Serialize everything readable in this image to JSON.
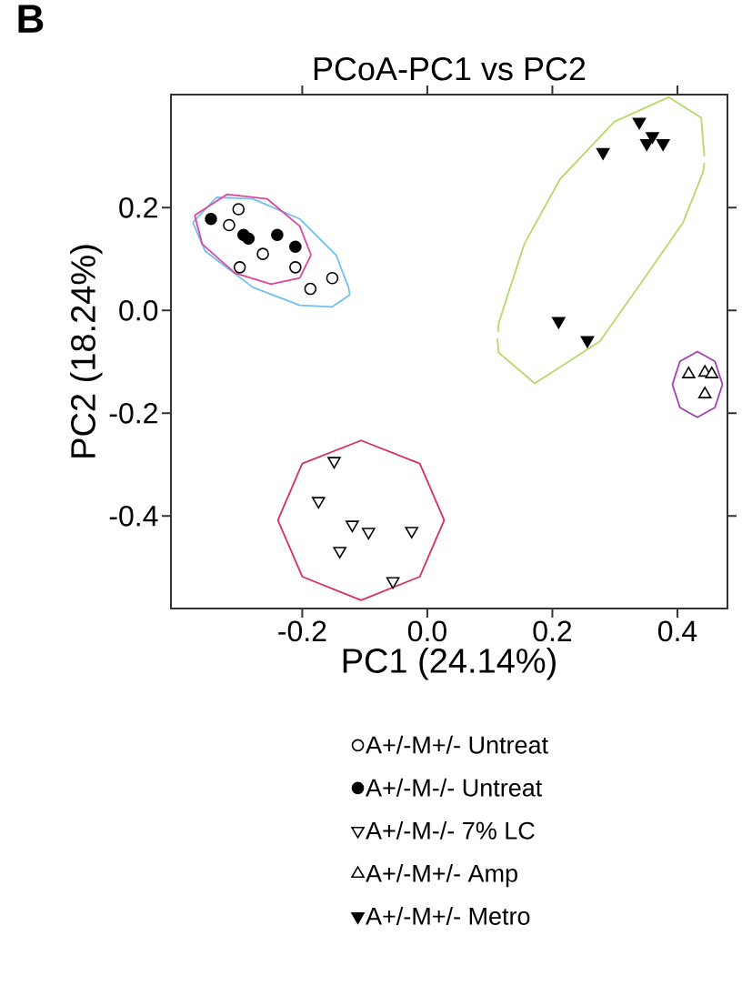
{
  "chart_data": {
    "type": "scatter",
    "title": "PCoA-PC1 vs PC2",
    "xlabel": "PC1 (24.14%)",
    "ylabel": "PC2 (18.24%)",
    "annotations": [
      "B"
    ],
    "xlim": [
      -0.41,
      0.48
    ],
    "ylim": [
      -0.58,
      0.42
    ],
    "xticks": [
      -0.2,
      {
        "value": 0,
        "label": "0.0"
      },
      0.2,
      0.4
    ],
    "yticks": [
      -0.4,
      -0.2,
      {
        "value": 0,
        "label": "0.0"
      },
      0.2
    ],
    "legend": "bottom",
    "series": [
      {
        "name": "A+/-M+/- Untreat",
        "marker": "circle_open",
        "color": "#000000",
        "x": [
          -0.302,
          -0.317,
          -0.263,
          -0.3,
          -0.211,
          -0.152,
          -0.187
        ],
        "values": [
          0.197,
          0.166,
          0.11,
          0.084,
          0.084,
          0.063,
          0.042
        ]
      },
      {
        "name": "A+/-M-/- Untreat",
        "marker": "circle",
        "color": "#000000",
        "x": [
          -0.346,
          -0.294,
          -0.286,
          -0.24,
          -0.211
        ],
        "values": [
          0.178,
          0.147,
          0.14,
          0.147,
          0.124
        ]
      },
      {
        "name": "A+/-M-/- 7% LC",
        "marker": "triangle_down_open",
        "color": "#000000",
        "x": [
          -0.149,
          -0.174,
          -0.12,
          -0.094,
          -0.14,
          -0.025,
          -0.055
        ],
        "values": [
          -0.293,
          -0.371,
          -0.417,
          -0.431,
          -0.468,
          -0.429,
          -0.527
        ]
      },
      {
        "name": "A+/-M+/- Amp",
        "marker": "triangle_open",
        "color": "#000000",
        "x": [
          0.418,
          0.444,
          0.455,
          0.444
        ],
        "values": [
          -0.124,
          -0.121,
          -0.124,
          -0.163
        ]
      },
      {
        "name": "A+/-M+/- Metro",
        "marker": "triangle_down",
        "color": "#000000",
        "x": [
          0.339,
          0.36,
          0.351,
          0.377,
          0.281,
          0.21,
          0.256
        ],
        "values": [
          0.367,
          0.339,
          0.325,
          0.325,
          0.308,
          -0.021,
          -0.058
        ]
      },
      {
        "type": "line",
        "marker": "none",
        "color": "#b5d96a",
        "x": [
          0.113,
          0.114,
          0.155,
          0.212,
          0.299,
          0.386,
          0.438,
          0.443
        ],
        "values": [
          -0.042,
          -0.025,
          0.129,
          0.255,
          0.367,
          0.415,
          0.375,
          0.3
        ]
      },
      {
        "type": "line",
        "marker": "none",
        "color": "#b5d96a",
        "x": [
          0.112,
          0.114,
          0.172,
          0.276,
          0.345,
          0.409,
          0.441,
          0.443
        ],
        "values": [
          -0.055,
          -0.082,
          -0.142,
          -0.06,
          0.059,
          0.171,
          0.269,
          0.287
        ]
      },
      {
        "type": "line",
        "marker": "none",
        "color": "#6ec1f0",
        "x": [
          -0.375,
          -0.337,
          -0.279,
          -0.204,
          -0.146,
          -0.126,
          -0.124
        ],
        "values": [
          0.171,
          0.22,
          0.217,
          0.178,
          0.108,
          0.045,
          0.03
        ]
      },
      {
        "type": "line",
        "marker": "none",
        "color": "#6ec1f0",
        "x": [
          -0.375,
          -0.355,
          -0.279,
          -0.204,
          -0.152,
          -0.124
        ],
        "values": [
          0.171,
          0.115,
          0.045,
          0.01,
          0.007,
          0.03
        ]
      },
      {
        "type": "line",
        "marker": "none",
        "color": "#e0459a",
        "x": [
          -0.372,
          -0.32,
          -0.256,
          -0.204,
          -0.186
        ],
        "values": [
          0.185,
          0.226,
          0.217,
          0.164,
          0.108
        ]
      },
      {
        "type": "line",
        "marker": "none",
        "color": "#e0459a",
        "x": [
          -0.372,
          -0.36,
          -0.308,
          -0.25,
          -0.204,
          -0.186
        ],
        "values": [
          0.185,
          0.129,
          0.073,
          0.051,
          0.063,
          0.108
        ]
      },
      {
        "type": "line",
        "marker": "none",
        "color": "#d9305a",
        "x": [
          -0.239,
          -0.2,
          -0.106,
          -0.012,
          0.027
        ],
        "values": [
          -0.408,
          -0.298,
          -0.253,
          -0.298,
          -0.408
        ]
      },
      {
        "type": "line",
        "marker": "none",
        "color": "#d9305a",
        "x": [
          -0.239,
          -0.2,
          -0.106,
          -0.012,
          0.027
        ],
        "values": [
          -0.408,
          -0.518,
          -0.564,
          -0.518,
          -0.408
        ]
      },
      {
        "type": "line",
        "marker": "none",
        "color": "#a040b0",
        "x": [
          0.392,
          0.404,
          0.432,
          0.46,
          0.472
        ],
        "values": [
          -0.144,
          -0.099,
          -0.08,
          -0.099,
          -0.144
        ]
      },
      {
        "type": "line",
        "marker": "none",
        "color": "#a040b0",
        "x": [
          0.392,
          0.404,
          0.432,
          0.46,
          0.472
        ],
        "values": [
          -0.144,
          -0.189,
          -0.208,
          -0.189,
          -0.144
        ]
      }
    ]
  }
}
